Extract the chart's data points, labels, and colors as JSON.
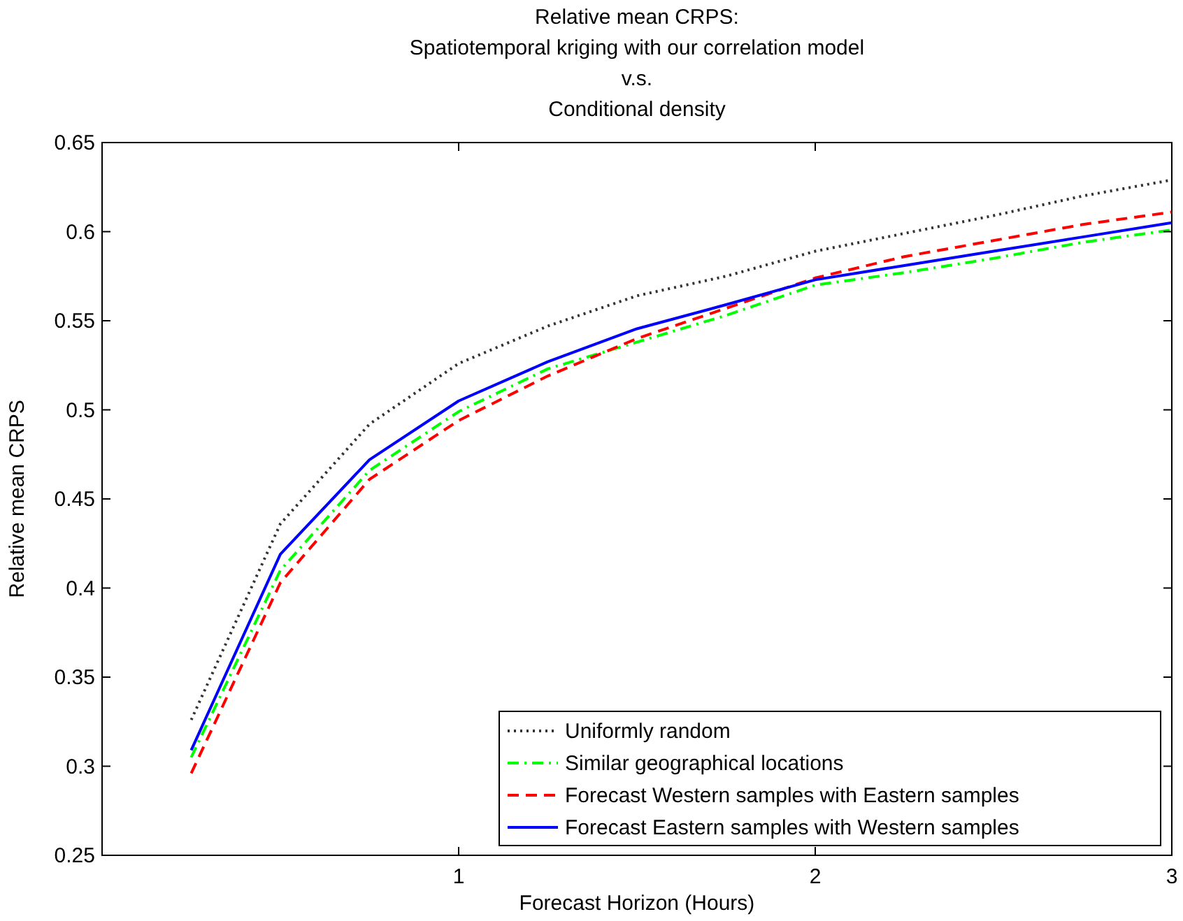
{
  "chart_data": {
    "type": "line",
    "title": "Relative mean CRPS:\nSpatiotemporal kriging with our correlation model\nv.s.\nConditional density",
    "xlabel": "Forecast Horizon (Hours)",
    "ylabel": "Relative mean CRPS",
    "x": [
      0.25,
      0.5,
      0.75,
      1,
      1.25,
      1.5,
      1.75,
      2,
      2.25,
      2.5,
      2.75,
      3
    ],
    "series": [
      {
        "name": "Uniformly random",
        "color": "#333333",
        "line_style": "dotted",
        "values": [
          0.326,
          0.436,
          0.492,
          0.526,
          0.547,
          0.564,
          0.575,
          0.589,
          0.599,
          0.609,
          0.62,
          0.629
        ]
      },
      {
        "name": "Similar geographical locations",
        "color": "#00ff00",
        "line_style": "dashdot",
        "values": [
          0.305,
          0.41,
          0.466,
          0.499,
          0.523,
          0.538,
          0.553,
          0.57,
          0.577,
          0.585,
          0.594,
          0.601
        ]
      },
      {
        "name": "Forecast Western samples with Eastern samples",
        "color": "#ff0000",
        "line_style": "dashed",
        "values": [
          0.296,
          0.403,
          0.461,
          0.494,
          0.519,
          0.54,
          0.557,
          0.574,
          0.586,
          0.595,
          0.604,
          0.611
        ]
      },
      {
        "name": "Forecast Eastern samples with Western samples",
        "color": "#0000ff",
        "line_style": "solid",
        "values": [
          0.309,
          0.419,
          0.472,
          0.505,
          0.527,
          0.5455,
          0.559,
          0.573,
          0.581,
          0.589,
          0.597,
          0.605
        ]
      }
    ],
    "xlim": [
      0,
      3
    ],
    "xticks": [
      1,
      2,
      3
    ],
    "ylim": [
      0.25,
      0.65
    ],
    "yticks": [
      0.25,
      0.3,
      0.35,
      0.4,
      0.45,
      0.5,
      0.55,
      0.6,
      0.65
    ],
    "grid": false,
    "legend": "bottom right"
  }
}
